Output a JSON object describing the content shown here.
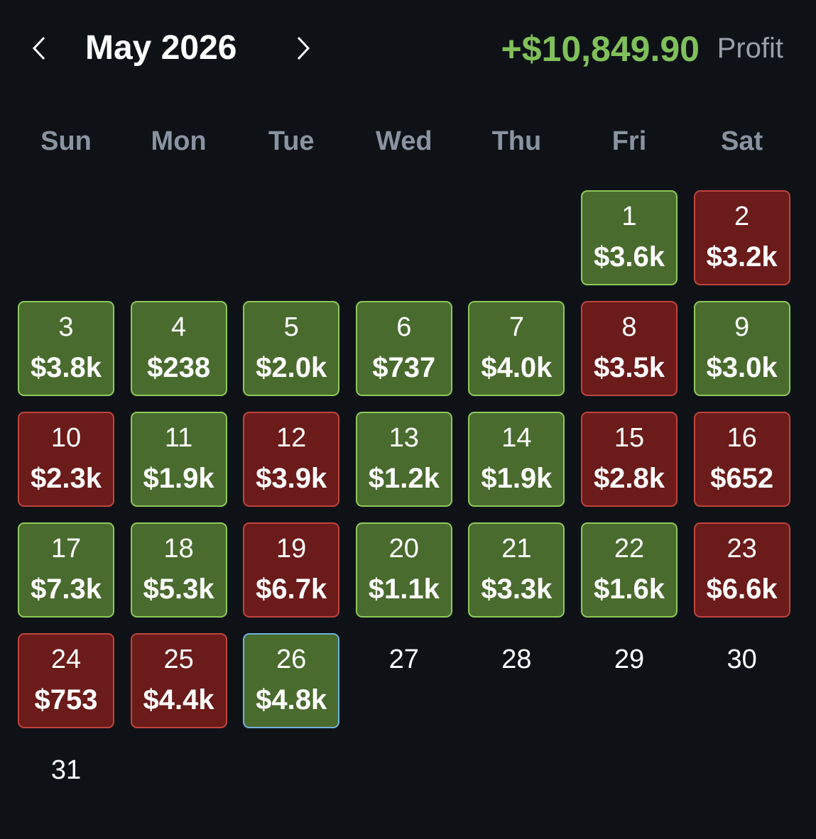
{
  "header": {
    "month": "May 2026",
    "total": "+$10,849.90",
    "total_label": "Profit"
  },
  "weekdays": [
    "Sun",
    "Mon",
    "Tue",
    "Wed",
    "Thu",
    "Fri",
    "Sat"
  ],
  "weeks": [
    [
      null,
      null,
      null,
      null,
      null,
      {
        "day": 1,
        "amount": "$3.6k",
        "color": "green"
      },
      {
        "day": 2,
        "amount": "$3.2k",
        "color": "red"
      }
    ],
    [
      {
        "day": 3,
        "amount": "$3.8k",
        "color": "green"
      },
      {
        "day": 4,
        "amount": "$238",
        "color": "green"
      },
      {
        "day": 5,
        "amount": "$2.0k",
        "color": "green"
      },
      {
        "day": 6,
        "amount": "$737",
        "color": "green"
      },
      {
        "day": 7,
        "amount": "$4.0k",
        "color": "green"
      },
      {
        "day": 8,
        "amount": "$3.5k",
        "color": "red"
      },
      {
        "day": 9,
        "amount": "$3.0k",
        "color": "green"
      }
    ],
    [
      {
        "day": 10,
        "amount": "$2.3k",
        "color": "red"
      },
      {
        "day": 11,
        "amount": "$1.9k",
        "color": "green"
      },
      {
        "day": 12,
        "amount": "$3.9k",
        "color": "red"
      },
      {
        "day": 13,
        "amount": "$1.2k",
        "color": "green"
      },
      {
        "day": 14,
        "amount": "$1.9k",
        "color": "green"
      },
      {
        "day": 15,
        "amount": "$2.8k",
        "color": "red"
      },
      {
        "day": 16,
        "amount": "$652",
        "color": "red"
      }
    ],
    [
      {
        "day": 17,
        "amount": "$7.3k",
        "color": "green"
      },
      {
        "day": 18,
        "amount": "$5.3k",
        "color": "green"
      },
      {
        "day": 19,
        "amount": "$6.7k",
        "color": "red"
      },
      {
        "day": 20,
        "amount": "$1.1k",
        "color": "green"
      },
      {
        "day": 21,
        "amount": "$3.3k",
        "color": "green"
      },
      {
        "day": 22,
        "amount": "$1.6k",
        "color": "green"
      },
      {
        "day": 23,
        "amount": "$6.6k",
        "color": "red"
      }
    ],
    [
      {
        "day": 24,
        "amount": "$753",
        "color": "red"
      },
      {
        "day": 25,
        "amount": "$4.4k",
        "color": "red"
      },
      {
        "day": 26,
        "amount": "$4.8k",
        "color": "green",
        "border": "blue"
      },
      {
        "day": 27
      },
      {
        "day": 28
      },
      {
        "day": 29
      },
      {
        "day": 30
      }
    ],
    [
      {
        "day": 31
      },
      null,
      null,
      null,
      null,
      null,
      null
    ]
  ]
}
